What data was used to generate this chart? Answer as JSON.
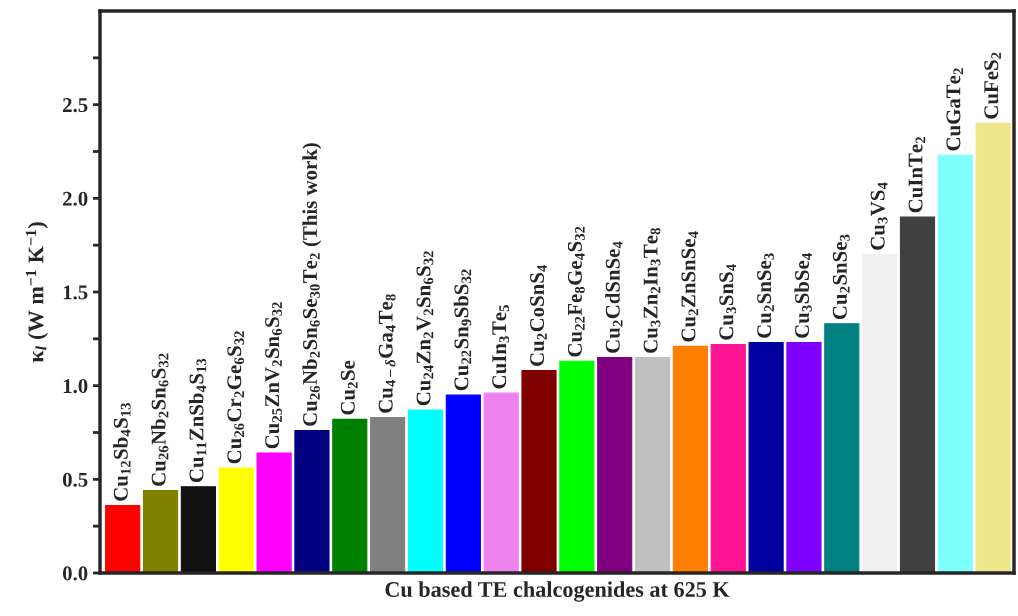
{
  "chart_data": {
    "type": "bar",
    "xlabel": "Cu based TE chalcogenides at 625 K",
    "ylabel": "κ$_{l}$ (W m$^{−1}$ K$^{−1}$)",
    "categories": [
      "Cu$_{12}$Sb$_{4}$S$_{13}$",
      "Cu$_{26}$Nb$_{2}$Sn$_{6}$S$_{32}$",
      "Cu$_{11}$ZnSb$_{4}$S$_{13}$",
      "Cu$_{26}$Cr$_{2}$Ge$_{6}$S$_{32}$",
      "Cu$_{25}$ZnV$_{2}$Sn$_{6}$S$_{32}$",
      "Cu$_{26}$Nb$_{2}$Sn$_{6}$Se$_{30}$Te$_{2}$ (This work)",
      "Cu$_{2}$Se",
      "Cu$_{4−δ}$Ga$_{4}$Te$_{8}$",
      "Cu$_{24}$Zn$_{2}$V$_{2}$Sn$_{6}$S$_{32}$",
      "Cu$_{22}$Sn$_{9}$SbS$_{32}$",
      "CuIn$_{3}$Te$_{5}$",
      "Cu$_{2}$CoSnS$_{4}$",
      "Cu$_{22}$Fe$_{8}$Ge$_{4}$S$_{32}$",
      "Cu$_{2}$CdSnSe$_{4}$",
      "Cu$_{3}$Zn$_{2}$In$_{3}$Te$_{8}$",
      "Cu$_{2}$ZnSnSe$_{4}$",
      "Cu$_{3}$SnS$_{4}$",
      "Cu$_{2}$SnSe$_{3}$",
      "Cu$_{3}$SbSe$_{4}$",
      "Cu$_{2}$SnSe$_{3}$",
      "Cu$_{3}$VS$_{4}$",
      "CuInTe$_{2}$",
      "CuGaTe$_{2}$",
      "CuFeS$_{2}$"
    ],
    "values": [
      0.36,
      0.44,
      0.46,
      0.56,
      0.64,
      0.76,
      0.82,
      0.83,
      0.87,
      0.95,
      0.96,
      1.08,
      1.13,
      1.15,
      1.15,
      1.21,
      1.22,
      1.23,
      1.23,
      1.33,
      1.7,
      1.9,
      2.23,
      2.4
    ],
    "colors": [
      "#ff0000",
      "#808000",
      "#111111",
      "#ffff00",
      "#ff00ff",
      "#000080",
      "#008000",
      "#808080",
      "#00ffff",
      "#0000ff",
      "#ee82ee",
      "#800000",
      "#00ff00",
      "#800080",
      "#c0c0c0",
      "#ff8000",
      "#ff1493",
      "#0000a0",
      "#8000ff",
      "#008080",
      "#f0f0f0",
      "#404040",
      "#80ffff",
      "#f0e68c"
    ],
    "ylim": [
      0,
      3.0
    ],
    "yticks": [
      {
        "value": 0,
        "label": "0.0"
      },
      {
        "value": 0.25,
        "label": null
      },
      {
        "value": 0.5,
        "label": "0.5"
      },
      {
        "value": 0.75,
        "label": null
      },
      {
        "value": 1.0,
        "label": "1.0"
      },
      {
        "value": 1.25,
        "label": null
      },
      {
        "value": 1.5,
        "label": "1.5"
      },
      {
        "value": 1.75,
        "label": null
      },
      {
        "value": 2.0,
        "label": "2.0"
      },
      {
        "value": 2.25,
        "label": null
      },
      {
        "value": 2.5,
        "label": "2.5"
      },
      {
        "value": 2.75,
        "label": null
      }
    ],
    "tick_labels": "y",
    "grid": false,
    "legend": false
  }
}
